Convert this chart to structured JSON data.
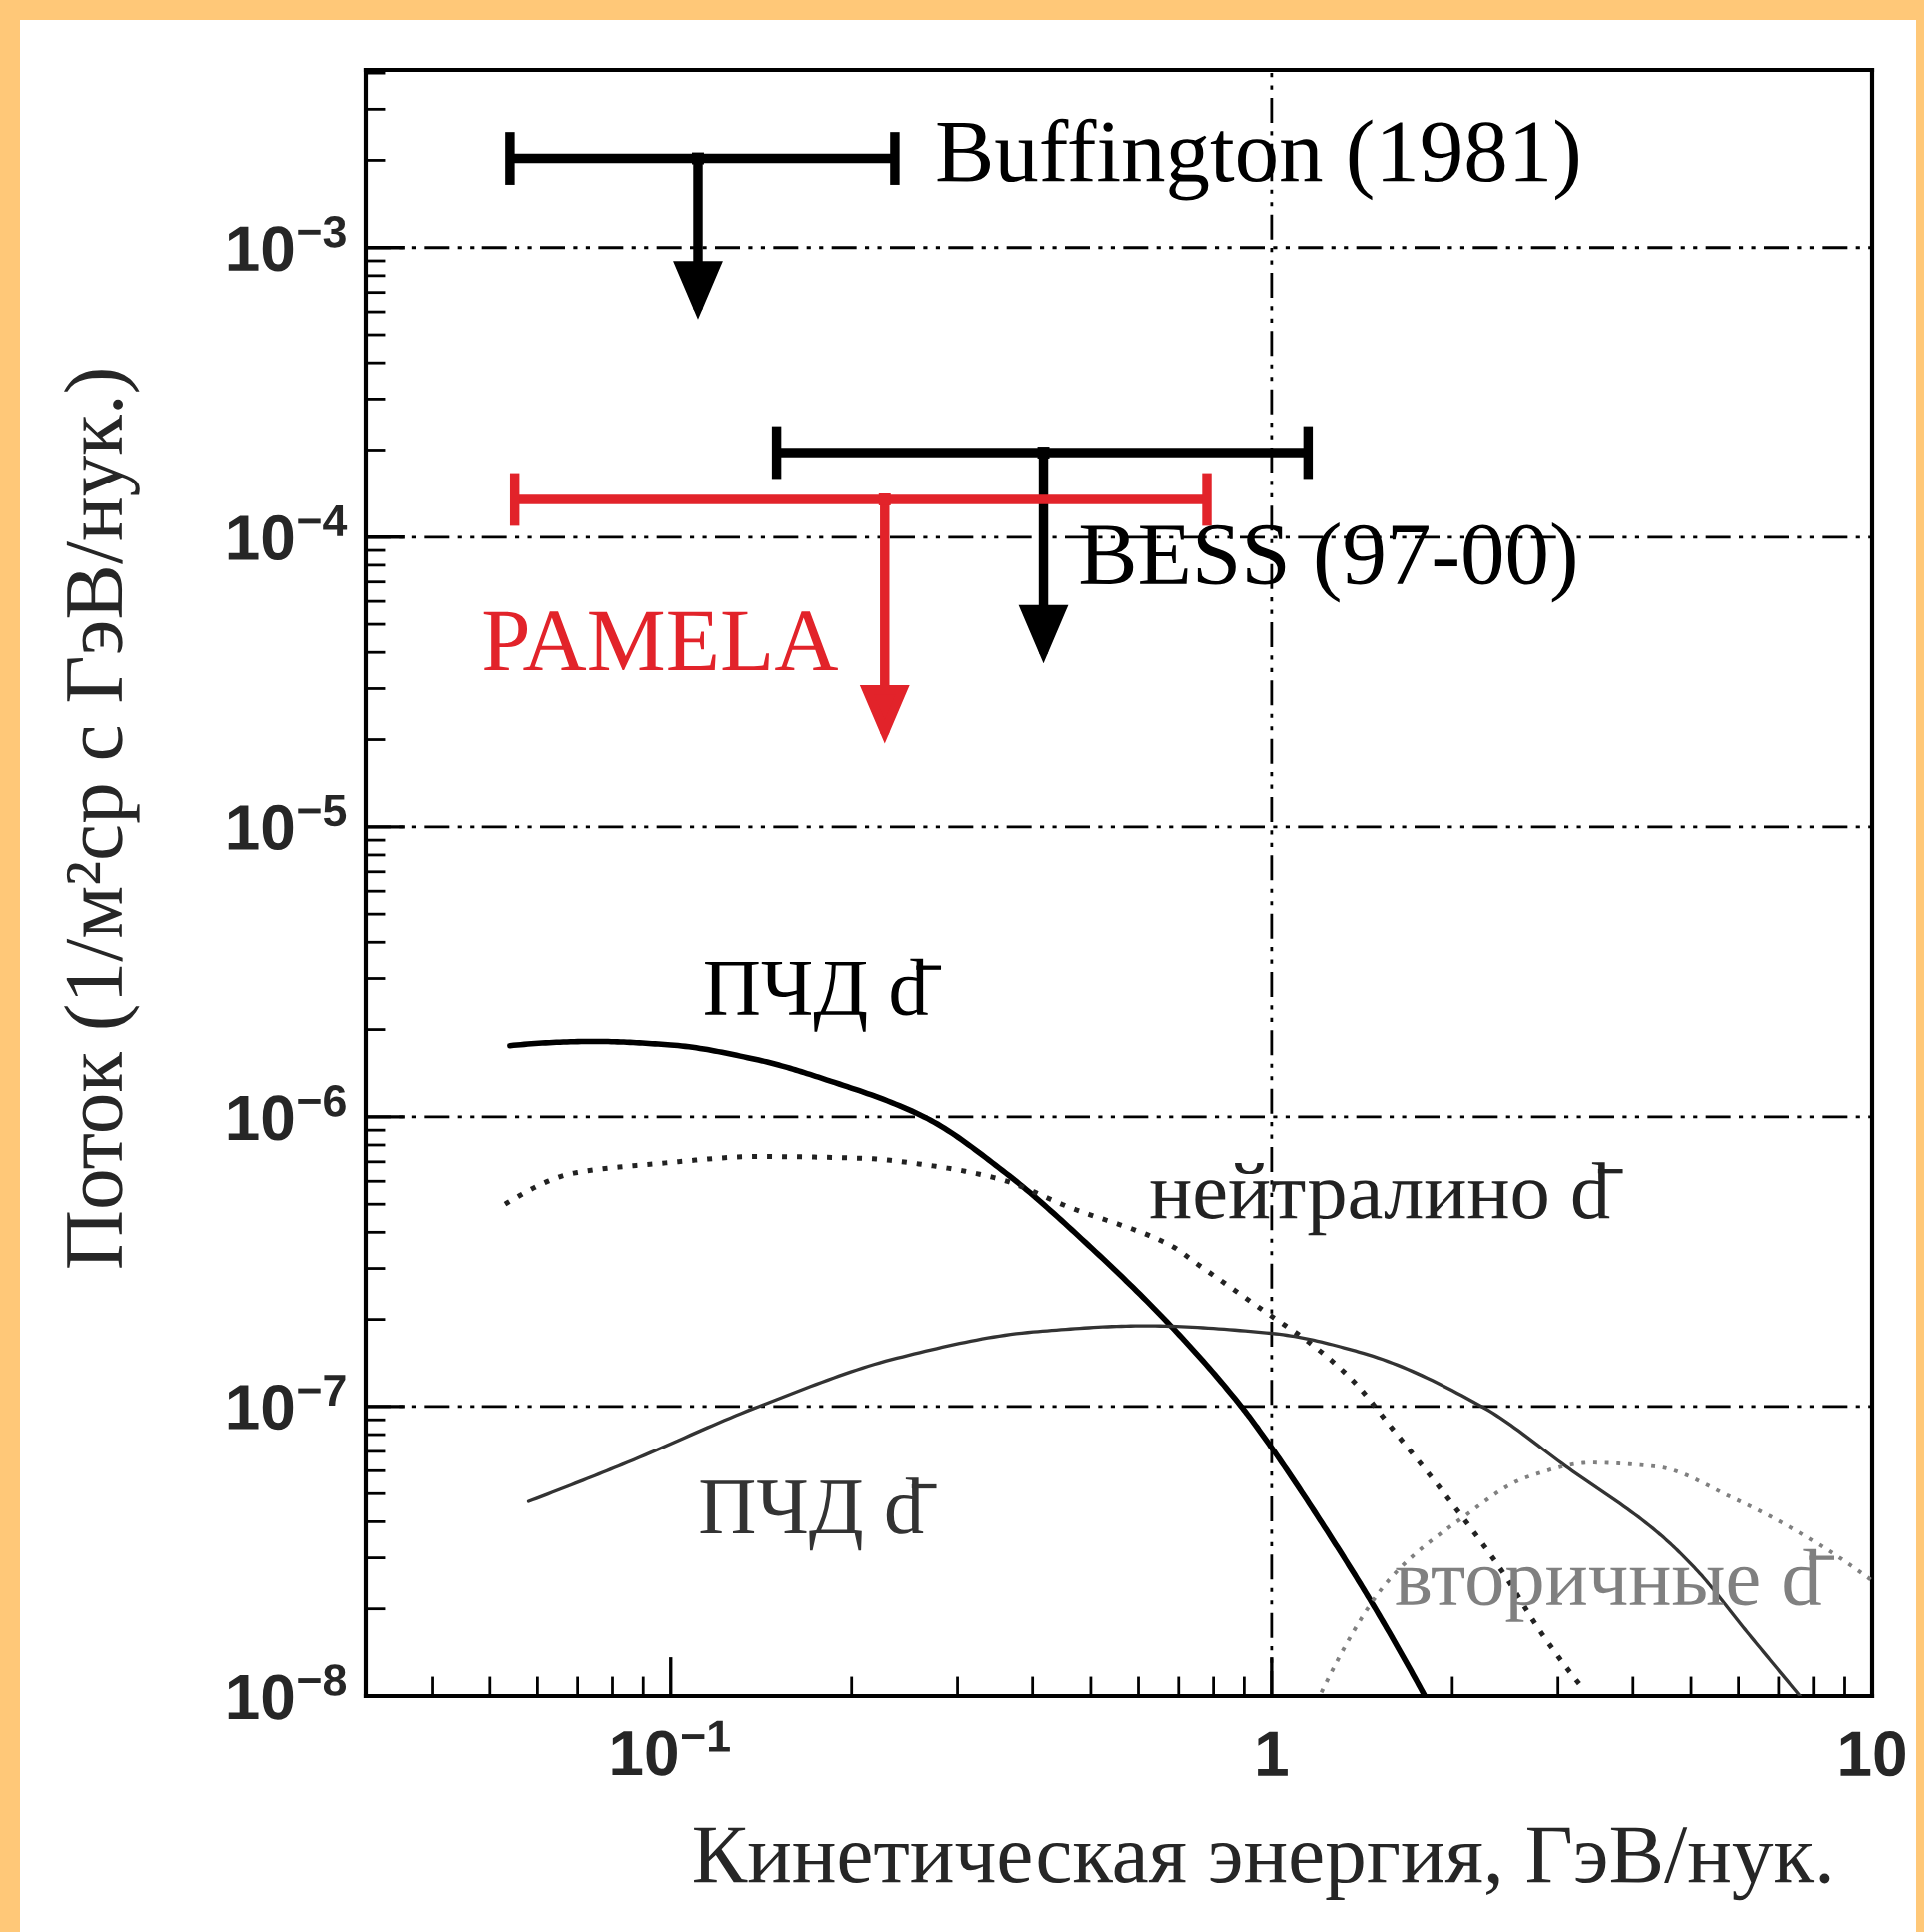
{
  "chart_data": {
    "type": "line",
    "log": "xy",
    "xlabel": "Кинетическая энергия, ГэВ/нук.",
    "ylabel": "Поток (1/м²ср с ГэВ/нук.)",
    "xlim": [
      0.031,
      10
    ],
    "ylim": [
      1e-08,
      0.0041
    ],
    "xticks": [
      {
        "value": 0.1,
        "label": "10$^{−1}$"
      },
      1,
      10
    ],
    "yticks": [
      {
        "value": 1e-08,
        "label": "10$^{−8}$"
      },
      {
        "value": 1e-07,
        "label": "10$^{−7}$"
      },
      {
        "value": 1e-06,
        "label": "10$^{−6}$"
      },
      {
        "value": 1e-05,
        "label": "10$^{−5}$"
      },
      {
        "value": 0.0001,
        "label": "10$^{−4}$"
      },
      {
        "value": 0.001,
        "label": "10$^{−3}$"
      }
    ],
    "grid": "y",
    "ref_lines": [
      {
        "axis": "x",
        "value": 1
      }
    ],
    "series": [
      {
        "name": "Buffington (1981)",
        "type": "scatter",
        "color": "#000000",
        "x": [
          0.111
        ],
        "values": [
          0.00203
        ],
        "xerrors": [
          [
            0.054,
            0.236
          ]
        ]
      },
      {
        "name": "BESS (97-00)",
        "type": "scatter",
        "color": "#000000",
        "x": [
          0.417
        ],
        "values": [
          0.000196
        ],
        "xerrors": [
          [
            0.15,
            1.15
          ]
        ]
      },
      {
        "name": "PAMELA",
        "type": "scatter",
        "color": "#e2232a",
        "x": [
          0.227
        ],
        "values": [
          0.000135
        ],
        "xerrors": [
          [
            0.055,
            0.78
          ]
        ]
      },
      {
        "name": "ПЧД d̄",
        "type": "line",
        "color": "#000000",
        "line_style": "solid",
        "x": [
          0.054,
          0.075,
          0.1,
          0.14,
          0.182,
          0.264,
          0.361,
          0.496,
          0.679,
          0.89,
          1.0,
          1.26,
          1.5,
          1.8
        ],
        "values": [
          1.76e-06,
          1.82e-06,
          1.77e-06,
          1.57e-06,
          1.34e-06,
          1e-06,
          6.4e-07,
          3.6e-07,
          1.9e-07,
          1e-07,
          7.2e-08,
          3.5e-08,
          1.95e-08,
          1e-08
        ]
      },
      {
        "name": "нейтралино d̄",
        "type": "line",
        "color": "#222222",
        "line_style": "dotted",
        "x": [
          0.053,
          0.069,
          0.095,
          0.14,
          0.208,
          0.27,
          0.353,
          0.458,
          0.679,
          0.753,
          1.0,
          1.14,
          1.36,
          1.61,
          1.97,
          2.42,
          2.81,
          3.33
        ],
        "values": [
          5e-07,
          6.4e-07,
          6.9e-07,
          7.3e-07,
          7.2e-07,
          6.8e-07,
          6.1e-07,
          4.9e-07,
          3.6e-07,
          3.1e-07,
          2.05e-07,
          1.7e-07,
          1.24e-07,
          8.1e-08,
          4.8e-08,
          2.7e-08,
          1.66e-08,
          1.04e-08
        ]
      },
      {
        "name": "ПЧД d̄",
        "type": "line",
        "color": "#333333",
        "line_style": "solid",
        "x": [
          0.058,
          0.083,
          0.14,
          0.238,
          0.401,
          0.614,
          1.0,
          1.42,
          2.24,
          3.13,
          4.38,
          5.13,
          6.15,
          7.6
        ],
        "values": [
          4.7e-08,
          6.3e-08,
          1e-07,
          1.47e-07,
          1.81e-07,
          1.9e-07,
          1.79e-07,
          1.53e-07,
          1e-07,
          6.1e-08,
          3.7e-08,
          2.7e-08,
          1.7e-08,
          1e-08
        ]
      },
      {
        "name": "вторичные d̄",
        "type": "line",
        "color": "#808080",
        "line_style": "dotted",
        "x": [
          1.21,
          1.58,
          2.07,
          2.66,
          3.41,
          4.38,
          5.91,
          7.2,
          10
        ],
        "values": [
          1.03e-08,
          2.56e-08,
          4.1e-08,
          5.7e-08,
          6.4e-08,
          6.2e-08,
          4.8e-08,
          3.9e-08,
          2.5e-08
        ]
      }
    ]
  }
}
